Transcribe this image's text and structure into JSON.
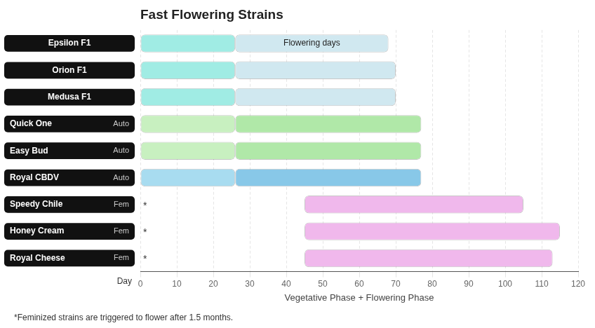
{
  "chart_data": {
    "type": "bar",
    "orientation": "horizontal",
    "title": "Fast Flowering Strains",
    "subtitle": "Vegetative Phase + Flowering Phase",
    "footnote": "*Feminized strains are triggered to flower after 1.5 months.",
    "xlabel": "Day",
    "categories": [
      "Epsilon F1",
      "Orion F1",
      "Medusa F1",
      "Quick One",
      "Easy Bud",
      "Royal CBDV",
      "Speedy Chile",
      "Honey Cream",
      "Royal Cheese"
    ],
    "category_types": [
      null,
      null,
      null,
      "Auto",
      "Auto",
      "Auto",
      "Fem",
      "Fem",
      "Fem"
    ],
    "category_marks": [
      null,
      null,
      null,
      null,
      null,
      null,
      "*",
      "*",
      "*"
    ],
    "series": [
      {
        "name": "Vegetative Phase",
        "colors": [
          "#a0ece4",
          "#a0ece4",
          "#a0ece4",
          "#c8f0c0",
          "#c8f0c0",
          "#a8dcf0",
          null,
          null,
          null
        ],
        "values": [
          [
            0,
            26
          ],
          [
            0,
            26
          ],
          [
            0,
            26
          ],
          [
            0,
            26
          ],
          [
            0,
            26
          ],
          [
            0,
            26
          ],
          null,
          null,
          null
        ]
      },
      {
        "name": "Flowering Phase",
        "colors": [
          "#d0e8f0",
          "#d0e8f0",
          "#d0e8f0",
          "#b0e8a8",
          "#b0e8a8",
          "#88c8e8",
          "#f0b8ec",
          "#f0b8ec",
          "#f0b8ec"
        ],
        "values": [
          [
            26,
            68
          ],
          [
            26,
            70
          ],
          [
            26,
            70
          ],
          [
            26,
            77
          ],
          [
            26,
            77
          ],
          [
            26,
            77
          ],
          [
            45,
            105
          ],
          [
            45,
            115
          ],
          [
            45,
            113
          ]
        ]
      }
    ],
    "annotations": [
      {
        "text": "Flowering days",
        "category": "Epsilon F1",
        "series": "Flowering Phase"
      }
    ],
    "xlim": [
      0,
      120
    ],
    "xticks": [
      0,
      10,
      20,
      30,
      40,
      50,
      60,
      70,
      80,
      90,
      100,
      110,
      120
    ],
    "grid": true
  }
}
